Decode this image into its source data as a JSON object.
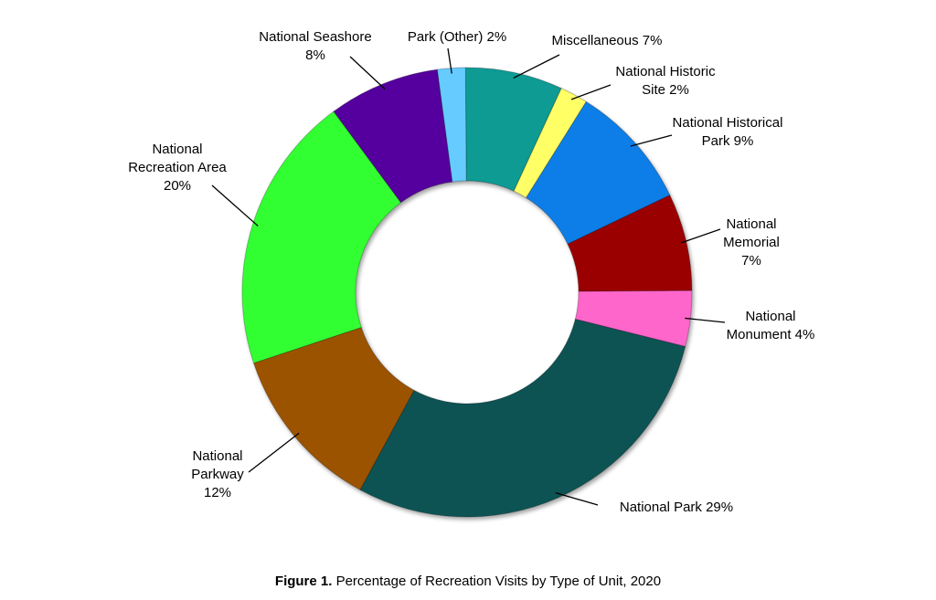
{
  "chart_data": {
    "type": "pie",
    "variant": "donut",
    "caption_bold": "Figure 1.",
    "caption_text": " Percentage of Recreation Visits by Type of Unit, 2020",
    "slices": [
      {
        "name": "Miscellaneous",
        "value": 7,
        "color": "#0f9b94",
        "label_lines": [
          "Miscellaneous 7%"
        ]
      },
      {
        "name": "National Historic Site",
        "value": 2,
        "color": "#ffff66",
        "label_lines": [
          "National Historic",
          "Site 2%"
        ]
      },
      {
        "name": "National Historical Park",
        "value": 9,
        "color": "#0a7ee8",
        "label_lines": [
          "National Historical",
          "Park 9%"
        ]
      },
      {
        "name": "National Memorial",
        "value": 7,
        "color": "#9b0000",
        "label_lines": [
          "National",
          "Memorial",
          "7%"
        ]
      },
      {
        "name": "National Monument",
        "value": 4,
        "color": "#ff66cc",
        "label_lines": [
          "National",
          "Monument 4%"
        ]
      },
      {
        "name": "National Park",
        "value": 29,
        "color": "#0b5252",
        "label_lines": [
          "National Park 29%"
        ]
      },
      {
        "name": "National Parkway",
        "value": 12,
        "color": "#9c5300",
        "label_lines": [
          "National",
          "Parkway",
          "12%"
        ]
      },
      {
        "name": "National Recreation Area",
        "value": 20,
        "color": "#33ff33",
        "label_lines": [
          "National",
          "Recreation Area",
          "20%"
        ]
      },
      {
        "name": "National Seashore",
        "value": 8,
        "color": "#55009e",
        "label_lines": [
          "National Seashore",
          "8%"
        ]
      },
      {
        "name": "Park (Other)",
        "value": 2,
        "color": "#66ccff",
        "label_lines": [
          "Park (Other) 2%"
        ]
      }
    ]
  }
}
